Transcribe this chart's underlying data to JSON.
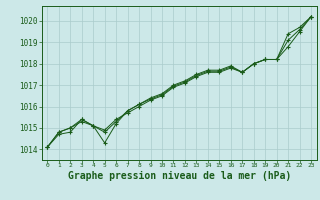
{
  "bg_color": "#cce8e8",
  "grid_color": "#aacccc",
  "line_color": "#1a5c1a",
  "marker_color": "#1a5c1a",
  "xlabel": "Graphe pression niveau de la mer (hPa)",
  "xlabel_fontsize": 7,
  "xlim": [
    -0.5,
    23.5
  ],
  "ylim": [
    1013.5,
    1020.7
  ],
  "yticks": [
    1014,
    1015,
    1016,
    1017,
    1018,
    1019,
    1020
  ],
  "xticks": [
    0,
    1,
    2,
    3,
    4,
    5,
    6,
    7,
    8,
    9,
    10,
    11,
    12,
    13,
    14,
    15,
    16,
    17,
    18,
    19,
    20,
    21,
    22,
    23
  ],
  "series1": [
    1014.1,
    1014.7,
    1014.8,
    1015.4,
    1015.1,
    1014.3,
    1015.2,
    1015.8,
    1016.1,
    1016.4,
    1016.6,
    1017.0,
    1017.2,
    1017.5,
    1017.7,
    1017.7,
    1017.9,
    1017.6,
    1018.0,
    1018.2,
    1018.2,
    1019.4,
    1019.7,
    1020.2
  ],
  "series2": [
    1014.1,
    1014.8,
    1015.0,
    1015.3,
    1015.1,
    1014.9,
    1015.4,
    1015.7,
    1016.0,
    1016.3,
    1016.5,
    1016.9,
    1017.1,
    1017.4,
    1017.6,
    1017.6,
    1017.8,
    1017.6,
    1018.0,
    1018.2,
    1018.2,
    1018.8,
    1019.5,
    1020.2
  ],
  "series3": [
    1014.1,
    1014.8,
    1015.0,
    1015.4,
    1015.1,
    1014.8,
    1015.3,
    1015.8,
    1016.1,
    1016.35,
    1016.55,
    1016.95,
    1017.15,
    1017.45,
    1017.65,
    1017.65,
    1017.85,
    1017.6,
    1018.0,
    1018.2,
    1018.2,
    1019.1,
    1019.6,
    1020.2
  ]
}
